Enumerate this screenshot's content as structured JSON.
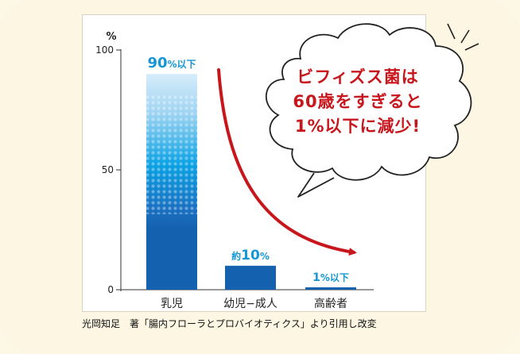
{
  "chart_data": {
    "type": "bar",
    "categories": [
      "乳児",
      "幼児−成人",
      "高齢者"
    ],
    "values": [
      90,
      10,
      1
    ],
    "data_labels": [
      {
        "main": "90",
        "suffix": "%以下",
        "prefix": ""
      },
      {
        "main": "10",
        "suffix": "%",
        "prefix": "約"
      },
      {
        "main": "1",
        "suffix": "%以下",
        "prefix": ""
      }
    ],
    "ylabel": "%",
    "ylim": [
      0,
      100
    ],
    "yticks": [
      "0",
      "50",
      "100"
    ],
    "grid": false,
    "colors": {
      "bar": "#1461b0",
      "bar_light": "#cfe8f8",
      "bar_mid": "#0a9fe0",
      "label": "#1597d6",
      "arrow": "#c8161d"
    }
  },
  "callout": {
    "lines": [
      "ビフィズス菌は",
      "60歳をすぎると",
      "1%以下に減少!"
    ]
  },
  "source_note": "光岡知足　著「腸内フローラとプロバイオティクス」より引用し改変"
}
